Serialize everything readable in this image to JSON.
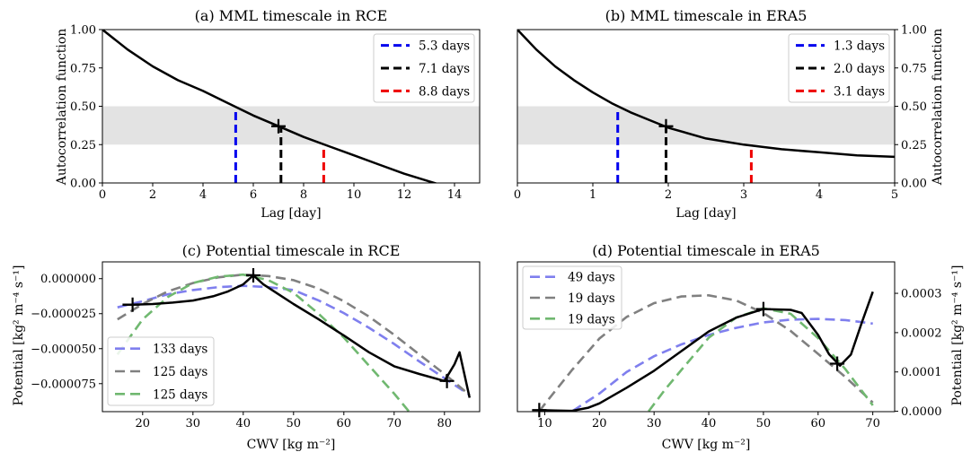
{
  "chart_data": [
    {
      "id": "a",
      "type": "line",
      "title": "(a) MML timescale in RCE",
      "xlabel": "Lag [day]",
      "ylabel": "Autocorrelation function",
      "xlim": [
        0,
        15
      ],
      "ylim": [
        0,
        1
      ],
      "xticks": [
        0,
        2,
        4,
        6,
        8,
        10,
        12,
        14
      ],
      "yticks": [
        0,
        0.25,
        0.5,
        0.75,
        1
      ],
      "ytick_labels": [
        "0.00",
        "0.25",
        "0.50",
        "0.75",
        "1.00"
      ],
      "yaxis_side": "left",
      "shaded_band": [
        0.25,
        0.5
      ],
      "curve": {
        "x": [
          0,
          1,
          2,
          3,
          4,
          5,
          6,
          7,
          8,
          9,
          10,
          11,
          12,
          13,
          13.6
        ],
        "y": [
          1.0,
          0.87,
          0.76,
          0.67,
          0.6,
          0.52,
          0.44,
          0.37,
          0.3,
          0.24,
          0.18,
          0.12,
          0.06,
          0.01,
          -0.02
        ]
      },
      "vlines": [
        {
          "label": "5.3 days",
          "x": 5.3,
          "ymax": 0.47,
          "color": "#0000ee"
        },
        {
          "label": "7.1 days",
          "x": 7.1,
          "ymax": 0.37,
          "color": "#000000"
        },
        {
          "label": "8.8 days",
          "x": 8.8,
          "ymax": 0.25,
          "color": "#ee0000"
        }
      ],
      "markers": [
        {
          "x": 7.0,
          "y": 0.37
        }
      ],
      "legend_position": "top-right"
    },
    {
      "id": "b",
      "type": "line",
      "title": "(b) MML timescale in ERA5",
      "xlabel": "Lag [day]",
      "ylabel": "Autocorrelation function",
      "xlim": [
        0,
        5
      ],
      "ylim": [
        0,
        1
      ],
      "xticks": [
        0,
        1,
        2,
        3,
        4,
        5
      ],
      "yticks": [
        0,
        0.25,
        0.5,
        0.75,
        1
      ],
      "ytick_labels": [
        "0.00",
        "0.25",
        "0.50",
        "0.75",
        "1.00"
      ],
      "yaxis_side": "right",
      "shaded_band": [
        0.25,
        0.5
      ],
      "curve": {
        "x": [
          0,
          0.25,
          0.5,
          0.75,
          1.0,
          1.25,
          1.5,
          1.75,
          2.0,
          2.5,
          3.0,
          3.5,
          4.0,
          4.5,
          5.0
        ],
        "y": [
          1.0,
          0.87,
          0.76,
          0.67,
          0.59,
          0.52,
          0.46,
          0.41,
          0.36,
          0.29,
          0.25,
          0.22,
          0.2,
          0.18,
          0.17
        ]
      },
      "vlines": [
        {
          "label": "1.3 days",
          "x": 1.33,
          "ymax": 0.48,
          "color": "#0000ee"
        },
        {
          "label": "2.0 days",
          "x": 1.97,
          "ymax": 0.37,
          "color": "#000000"
        },
        {
          "label": "3.1 days",
          "x": 3.1,
          "ymax": 0.25,
          "color": "#ee0000"
        }
      ],
      "markers": [
        {
          "x": 1.97,
          "y": 0.37
        }
      ],
      "legend_position": "top-right"
    },
    {
      "id": "c",
      "type": "line",
      "title": "(c) Potential timescale in RCE",
      "xlabel": "CWV [kg m⁻²]",
      "ylabel": "Potential [kg² m⁻⁴ s⁻¹]",
      "xlim": [
        12,
        87
      ],
      "ylim": [
        -9.5e-05,
        1.2e-05
      ],
      "xticks": [
        20,
        30,
        40,
        50,
        60,
        70,
        80
      ],
      "yticks": [
        0,
        -2.5e-05,
        -5e-05,
        -7.5e-05
      ],
      "ytick_labels": [
        "0.000000",
        "−0.000025",
        "−0.000050",
        "−0.000075"
      ],
      "yaxis_side": "left",
      "main_curve": {
        "x": [
          16,
          18,
          22,
          26,
          30,
          34,
          37,
          40,
          42,
          44,
          47,
          50,
          55,
          60,
          65,
          70,
          75,
          80,
          82,
          83,
          85
        ],
        "y": [
          -1.86e-05,
          -1.86e-05,
          -1.81e-05,
          -1.71e-05,
          -1.56e-05,
          -1.26e-05,
          -9.1e-06,
          -4.1e-06,
          2.4e-06,
          -4.1e-06,
          -1.11e-05,
          -1.81e-05,
          -2.91e-05,
          -4.06e-05,
          -5.26e-05,
          -6.26e-05,
          -6.81e-05,
          -7.31e-05,
          -6.11e-05,
          -5.26e-05,
          -8.51e-05
        ]
      },
      "fits": [
        {
          "name": "133 days",
          "color": "#7f7fee",
          "x": [
            15,
            20,
            25,
            30,
            35,
            40,
            45,
            50,
            55,
            60,
            65,
            70,
            75,
            80,
            85
          ],
          "y": [
            -2.05e-05,
            -1.61e-05,
            -1.11e-05,
            -8.1e-06,
            -6.1e-06,
            -5.1e-06,
            -6.1e-06,
            -8.1e-06,
            -1.56e-05,
            -2.46e-05,
            -3.51e-05,
            -4.66e-05,
            -5.91e-05,
            -7.11e-05,
            -8.31e-05
          ]
        },
        {
          "name": "125 days",
          "color": "#808080",
          "x": [
            15,
            20,
            25,
            30,
            35,
            40,
            45,
            50,
            55,
            60,
            65,
            70,
            75,
            80,
            85
          ],
          "y": [
            -2.91e-05,
            -1.81e-05,
            -9.1e-06,
            -3.1e-06,
            9e-07,
            2.9e-06,
            1.9e-06,
            -1.1e-06,
            -7.1e-06,
            -1.61e-05,
            -2.71e-05,
            -4.01e-05,
            -5.41e-05,
            -6.81e-05,
            -8.31e-05
          ]
        },
        {
          "name": "125 days",
          "color": "#70b870",
          "x": [
            15,
            20,
            25,
            30,
            35,
            40,
            45,
            50,
            55,
            60,
            65,
            70,
            73,
            76
          ],
          "y": [
            -5.41e-05,
            -2.91e-05,
            -1.31e-05,
            -3.1e-06,
            1.4e-06,
            2.9e-06,
            -1.1e-06,
            -1.01e-05,
            -2.51e-05,
            -4.21e-05,
            -6.21e-05,
            -8.21e-05,
            -9.51e-05,
            -0.0001061
          ]
        }
      ],
      "markers": [
        {
          "x": 18,
          "y": -1.86e-05
        },
        {
          "x": 42,
          "y": 2.4e-06
        },
        {
          "x": 80.5,
          "y": -7.31e-05
        }
      ],
      "legend_position": "bottom-left"
    },
    {
      "id": "d",
      "type": "line",
      "title": "(d) Potential timescale in ERA5",
      "xlabel": "CWV [kg m⁻²]",
      "ylabel": "Potential [kg² m⁻⁴ s⁻¹]",
      "xlim": [
        5,
        74
      ],
      "ylim": [
        -1e-06,
        0.00038
      ],
      "xticks": [
        10,
        20,
        30,
        40,
        50,
        60,
        70
      ],
      "yticks": [
        0,
        0.0001,
        0.0002,
        0.0003
      ],
      "ytick_labels": [
        "0.0000",
        "0.0001",
        "0.0002",
        "0.0003"
      ],
      "yaxis_side": "right",
      "main_curve": {
        "x": [
          9,
          12,
          15,
          18,
          20,
          25,
          30,
          35,
          40,
          45,
          50,
          55,
          57,
          60,
          62,
          64,
          66,
          68,
          70
        ],
        "y": [
          3e-06,
          2e-06,
          1e-06,
          9e-06,
          2e-05,
          6e-05,
          0.000103,
          0.000153,
          0.000203,
          0.000238,
          0.00026,
          0.000258,
          0.00025,
          0.000194,
          0.000145,
          0.000116,
          0.000144,
          0.000226,
          0.000304
        ]
      },
      "fits": [
        {
          "name": "49 days",
          "color": "#7f7fee",
          "x": [
            10,
            15,
            20,
            25,
            30,
            35,
            40,
            45,
            50,
            55,
            60,
            65,
            70
          ],
          "y": [
            -3e-05,
            0.0,
            4.5e-05,
            0.0001,
            0.00014,
            0.00017,
            0.000194,
            0.000212,
            0.000226,
            0.000233,
            0.000235,
            0.000232,
            0.000223
          ]
        },
        {
          "name": "19 days",
          "color": "#808080",
          "x": [
            9,
            10,
            15,
            20,
            25,
            30,
            35,
            40,
            45,
            50,
            55,
            60,
            65,
            70
          ],
          "y": [
            0.0,
            1.8e-05,
            0.000105,
            0.000185,
            0.00024,
            0.000275,
            0.000292,
            0.000295,
            0.000282,
            0.00025,
            0.000204,
            0.000146,
            8.7e-05,
            2.2e-05
          ]
        },
        {
          "name": "19 days",
          "color": "#70b870",
          "x": [
            29,
            32,
            35,
            40,
            45,
            50,
            55,
            60,
            65,
            70
          ],
          "y": [
            0.0,
            5.5e-05,
            0.000105,
            0.000187,
            0.000238,
            0.000262,
            0.000248,
            0.000186,
            0.000107,
            1.5e-05
          ]
        }
      ],
      "markers": [
        {
          "x": 9,
          "y": 3e-06
        },
        {
          "x": 50,
          "y": 0.00026
        },
        {
          "x": 63.5,
          "y": 0.000121
        }
      ],
      "legend_position": "top-left"
    }
  ]
}
